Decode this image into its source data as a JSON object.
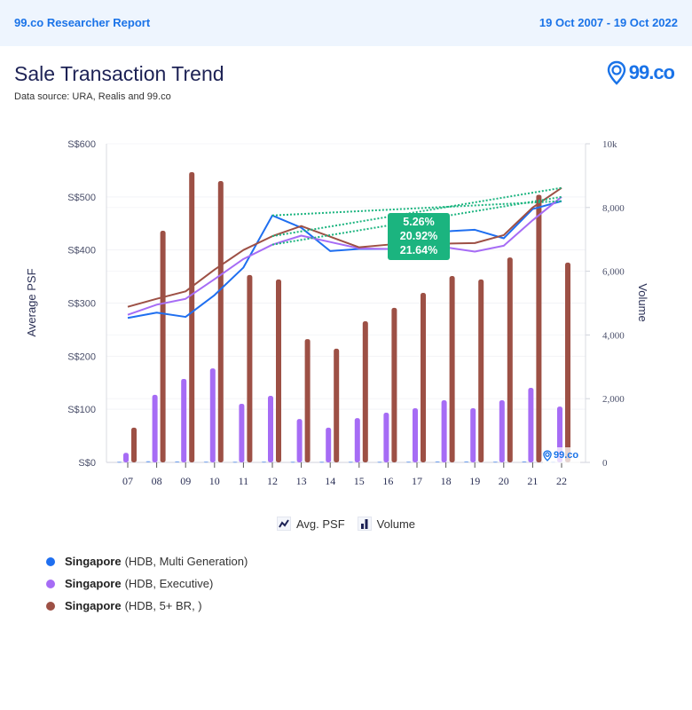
{
  "header": {
    "report_label": "99.co Researcher Report",
    "date_range": "19 Oct 2007 - 19 Oct 2022"
  },
  "title": "Sale Transaction Trend",
  "subtitle": "Data source: URA, Realis and 99.co",
  "brand": {
    "name": "99.co",
    "icon": "location-pin-icon"
  },
  "legend_toggles": [
    {
      "label": "Avg. PSF",
      "icon": "line-chart-icon"
    },
    {
      "label": "Volume",
      "icon": "bar-chart-icon"
    }
  ],
  "series_legend": [
    {
      "name": "Singapore",
      "detail": "(HDB, Multi Generation)",
      "color": "#1f6ff0"
    },
    {
      "name": "Singapore",
      "detail": "(HDB, Executive)",
      "color": "#a66cf5"
    },
    {
      "name": "Singapore",
      "detail": "(HDB, 5+ BR, )",
      "color": "#9d5045"
    }
  ],
  "tooltip": {
    "lines": [
      "5.26%",
      "20.92%",
      "21.64%"
    ],
    "color": "#1bb47f"
  },
  "watermark": "99.co",
  "chart_data": {
    "type": "bar+line",
    "title": "Sale Transaction Trend",
    "xlabel": "",
    "ylabel": "Average PSF",
    "y2label": "Volume",
    "categories": [
      "07",
      "08",
      "09",
      "10",
      "11",
      "12",
      "13",
      "14",
      "15",
      "16",
      "17",
      "18",
      "19",
      "20",
      "21",
      "22"
    ],
    "ylim": [
      0,
      600
    ],
    "y2lim": [
      0,
      10000
    ],
    "yticks": [
      "S$0",
      "S$100",
      "S$200",
      "S$300",
      "S$400",
      "S$500",
      "S$600"
    ],
    "y2ticks": [
      "0",
      "2,000",
      "4,000",
      "6,000",
      "8,000",
      "10k"
    ],
    "grid": true,
    "line_series": [
      {
        "name": "Singapore (HDB, Multi Generation)",
        "color": "#1f6ff0",
        "values": [
          272,
          282,
          274,
          315,
          367,
          465,
          442,
          398,
          402,
          402,
          417,
          435,
          438,
          422,
          477,
          492
        ]
      },
      {
        "name": "Singapore (HDB, Executive)",
        "color": "#a66cf5",
        "values": [
          278,
          297,
          308,
          345,
          383,
          410,
          427,
          415,
          403,
          402,
          407,
          405,
          397,
          408,
          456,
          500
        ]
      },
      {
        "name": "Singapore (HDB, 5+ BR, )",
        "color": "#9d5045",
        "values": [
          293,
          308,
          322,
          363,
          400,
          426,
          445,
          425,
          405,
          410,
          412,
          412,
          413,
          428,
          480,
          517
        ]
      }
    ],
    "bar_series": [
      {
        "name": "Singapore (HDB, Multi Generation)",
        "color": "#1f6ff0",
        "values": [
          20,
          40,
          30,
          25,
          20,
          25,
          20,
          20,
          20,
          20,
          25,
          30,
          30,
          25,
          30,
          20
        ]
      },
      {
        "name": "Singapore (HDB, Executive)",
        "color": "#a66cf5",
        "values": [
          300,
          2120,
          2620,
          2950,
          1840,
          2090,
          1360,
          1090,
          1390,
          1560,
          1700,
          1950,
          1700,
          1950,
          2340,
          1750
        ]
      },
      {
        "name": "Singapore (HDB, 5+ BR, )",
        "color": "#9d5045",
        "values": [
          1090,
          7270,
          9110,
          8830,
          5880,
          5740,
          3870,
          3570,
          4430,
          4850,
          5320,
          5850,
          5740,
          6430,
          8400,
          6270
        ]
      }
    ],
    "trendlines": [
      {
        "from": "12",
        "to": "22",
        "series": "Singapore (HDB, Multi Generation)",
        "change": "5.26%"
      },
      {
        "from": "12",
        "to": "22",
        "series": "Singapore (HDB, Executive)",
        "change": "20.92%"
      },
      {
        "from": "12",
        "to": "22",
        "series": "Singapore (HDB, 5+ BR, )",
        "change": "21.64%"
      }
    ],
    "trendline_color": "#1bb47f",
    "legend": [
      "Avg. PSF",
      "Volume"
    ]
  }
}
